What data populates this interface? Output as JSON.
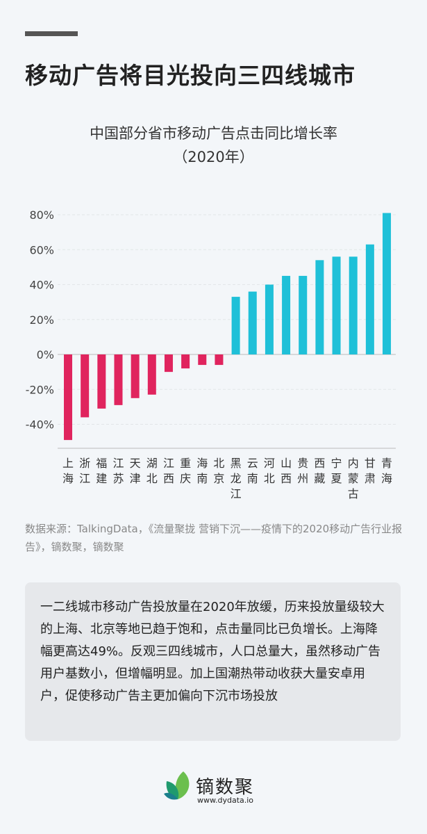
{
  "header": {
    "title": "移动广告将目光投向三四线城市"
  },
  "chart_data": {
    "type": "bar",
    "title": "中国部分省市移动广告点击同比增长率",
    "subtitle": "（2020年）",
    "categories": [
      "上海",
      "浙江",
      "福建",
      "江苏",
      "天津",
      "湖北",
      "江西",
      "重庆",
      "海南",
      "北京",
      "黑龙江",
      "云南",
      "河北",
      "山西",
      "贵州",
      "西藏",
      "宁夏",
      "内蒙古",
      "甘肃",
      "青海"
    ],
    "values": [
      -49,
      -36,
      -31,
      -29,
      -25,
      -23,
      -10,
      -8,
      -6,
      -6,
      33,
      36,
      40,
      45,
      45,
      54,
      56,
      56,
      63,
      81
    ],
    "unit": "%",
    "ylim": [
      -50,
      85
    ],
    "yticks": [
      "80%",
      "60%",
      "40%",
      "20%",
      "0%",
      "-20%",
      "-40%"
    ],
    "ytick_values": [
      80,
      60,
      40,
      20,
      0,
      -20,
      -40
    ],
    "grid": true,
    "colors": {
      "negative": "#e0245e",
      "positive": "#1fc0d8"
    }
  },
  "source": "数据来源：TalkingData，《流量聚拢 营销下沉——疫情下的2020移动广告行业报告》，镝数聚，镝数聚",
  "summary": "一二线城市移动广告投放量在2020年放缓，历来投放量级较大的上海、北京等地已趋于饱和，点击量同比已负增长。上海降幅更高达49%。反观三四线城市，人口总量大，虽然移动广告用户基数小，但增幅明显。加上国潮热带动收获大量安卓用户，促使移动广告主更加偏向下沉市场投放",
  "logo": {
    "brand": "镝数聚",
    "url": "www.dydata.io"
  }
}
